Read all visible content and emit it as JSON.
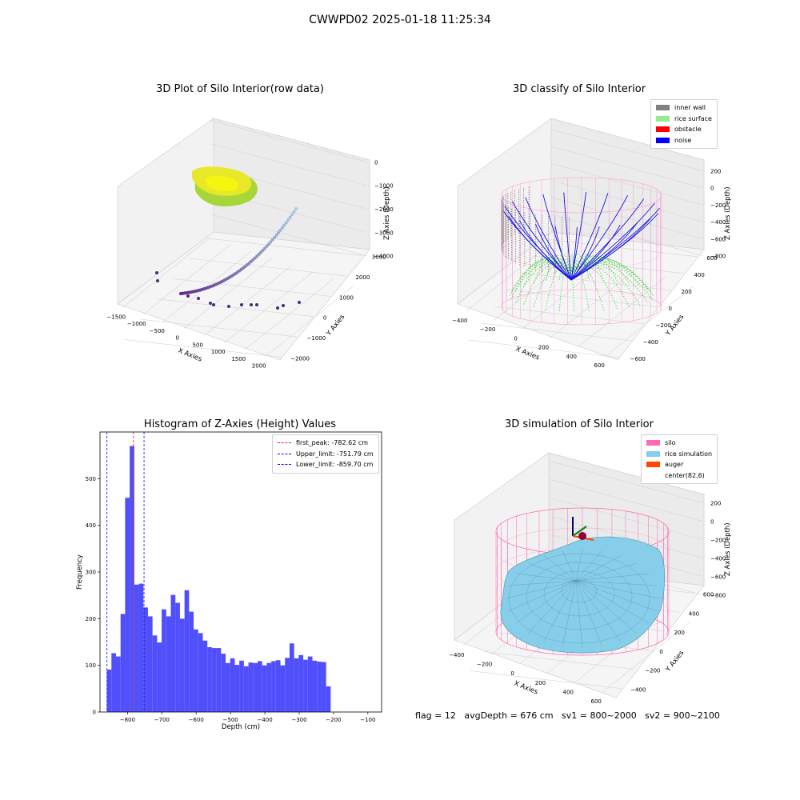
{
  "figure": {
    "suptitle": "CWWPD02 2025-01-18 11:25:34"
  },
  "colors": {
    "hist_bar": "#4f4ffb",
    "first_peak": "#e02020",
    "limit": "#1010d0",
    "inner_wall": "#808080",
    "rice_surface": "#90ee90",
    "obstacle": "#ff0000",
    "noise": "#0000ff",
    "silo": "#ff69b4",
    "rice_simulation": "#87ceeb",
    "auger": "#ff4500"
  },
  "chart_data": [
    {
      "type": "scatter",
      "title": "3D Plot of Silo Interior(row data)",
      "xlabel": "X Axies",
      "ylabel": "Y Axies",
      "zlabel": "Z Axies (Depth)",
      "x_ticks": [
        "−1500",
        "−1000",
        "−500",
        "0",
        "500",
        "1000",
        "1500",
        "2000"
      ],
      "y_ticks": [
        "−2000",
        "−1000",
        "0",
        "1000",
        "2000",
        "3000"
      ],
      "z_ticks": [
        "0",
        "−1000",
        "−2000",
        "−3000",
        "−4000"
      ]
    },
    {
      "type": "scatter",
      "title": "3D classify of Silo Interior",
      "xlabel": "X Axies",
      "ylabel": "Y Axies",
      "zlabel": "Z Axies (Depth)",
      "x_ticks": [
        "−400",
        "−200",
        "0",
        "200",
        "400",
        "600"
      ],
      "y_ticks": [
        "−600",
        "−400",
        "−200",
        "0",
        "200",
        "400",
        "600"
      ],
      "z_ticks": [
        "200",
        "0",
        "−200",
        "−400",
        "−600",
        "−800"
      ],
      "legend": [
        "inner wall",
        "rice surface",
        "obstacle",
        "noise"
      ],
      "legend_placement": "top-right"
    },
    {
      "type": "bar",
      "title": "Histogram of Z-Axies (Height) Values",
      "xlabel": "Depth (cm)",
      "ylabel": "Frequency",
      "xlim": [
        -880,
        -60
      ],
      "ylim": [
        0,
        600
      ],
      "x_ticks": [
        -800,
        -700,
        -600,
        -500,
        -400,
        -300,
        -200,
        -100
      ],
      "x_tick_labels": [
        "−800",
        "−700",
        "−600",
        "−500",
        "−400",
        "−300",
        "−200",
        "−100"
      ],
      "y_ticks": [
        0,
        100,
        200,
        300,
        400,
        500
      ],
      "bin_start": -860,
      "bin_width": 13.3,
      "values": [
        91,
        126,
        119,
        210,
        459,
        570,
        273,
        275,
        224,
        205,
        164,
        149,
        220,
        205,
        251,
        234,
        200,
        261,
        215,
        177,
        169,
        153,
        139,
        137,
        137,
        125,
        105,
        115,
        101,
        110,
        98,
        106,
        105,
        109,
        100,
        105,
        109,
        111,
        100,
        116,
        147,
        115,
        122,
        112,
        119,
        110,
        108,
        107,
        55
      ],
      "lines": [
        {
          "label": "first_peak: -782.62 cm",
          "x": -782.62,
          "color": "first_peak"
        },
        {
          "label": "Upper_limit: -751.79 cm",
          "x": -751.79,
          "color": "limit"
        },
        {
          "label": "Lower_limit: -859.70 cm",
          "x": -859.7,
          "color": "limit"
        }
      ],
      "legend_placement": "top-right"
    },
    {
      "type": "area",
      "title": "3D simulation of Silo Interior",
      "xlabel": "X Axies",
      "ylabel": "Y Axies",
      "zlabel": "Z Axies (Depth)",
      "x_ticks": [
        "−400",
        "−200",
        "0",
        "200",
        "400",
        "600"
      ],
      "y_ticks": [
        "−400",
        "−200",
        "0",
        "200",
        "400",
        "600"
      ],
      "z_ticks": [
        "200",
        "0",
        "−200",
        "−400",
        "−600",
        "−800"
      ],
      "legend": [
        "silo",
        "rice simulation",
        "auger",
        "center(82,6)"
      ],
      "legend_placement": "top-right"
    }
  ],
  "footer": {
    "status": "flag = 12   avgDepth = 676 cm   sv1 = 800~2000   sv2 = 900~2100"
  }
}
